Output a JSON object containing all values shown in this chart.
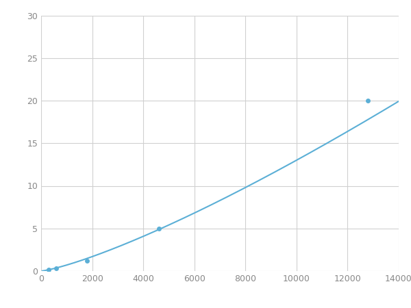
{
  "x_data": [
    300,
    600,
    1800,
    4600,
    12800
  ],
  "y_data": [
    0.2,
    0.3,
    1.2,
    5.0,
    20.0
  ],
  "line_color": "#5bafd6",
  "marker_color": "#5bafd6",
  "marker_size": 5,
  "line_width": 1.5,
  "xlim": [
    0,
    14000
  ],
  "ylim": [
    0,
    30
  ],
  "xticks": [
    0,
    2000,
    4000,
    6000,
    8000,
    10000,
    12000,
    14000
  ],
  "yticks": [
    0,
    5,
    10,
    15,
    20,
    25,
    30
  ],
  "grid_color": "#d0d0d0",
  "background_color": "#ffffff",
  "fig_width": 6.0,
  "fig_height": 4.5,
  "dpi": 100
}
